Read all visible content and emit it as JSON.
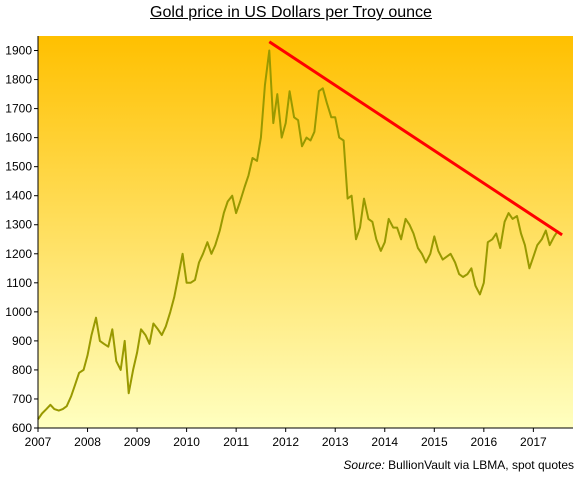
{
  "chart_data": {
    "type": "line",
    "title": "Gold price in US Dollars per Troy  ounce",
    "xlabel": "",
    "ylabel": "",
    "xlim": [
      2007.0,
      2017.8
    ],
    "ylim": [
      600,
      1950
    ],
    "x_ticks": [
      "2007",
      "2008",
      "2009",
      "2010",
      "2011",
      "2012",
      "2013",
      "2014",
      "2015",
      "2016",
      "2017"
    ],
    "y_ticks": [
      600,
      700,
      800,
      900,
      1000,
      1100,
      1200,
      1300,
      1400,
      1500,
      1600,
      1700,
      1800,
      1900
    ],
    "grid": false,
    "background_gradient": [
      "#ffc000",
      "#ffffc0"
    ],
    "series": [
      {
        "color": "#999900",
        "points": [
          [
            2007.0,
            630
          ],
          [
            2007.08,
            650
          ],
          [
            2007.17,
            665
          ],
          [
            2007.25,
            680
          ],
          [
            2007.33,
            665
          ],
          [
            2007.42,
            660
          ],
          [
            2007.5,
            665
          ],
          [
            2007.58,
            675
          ],
          [
            2007.67,
            710
          ],
          [
            2007.75,
            750
          ],
          [
            2007.83,
            790
          ],
          [
            2007.92,
            800
          ],
          [
            2008.0,
            850
          ],
          [
            2008.08,
            920
          ],
          [
            2008.17,
            980
          ],
          [
            2008.25,
            900
          ],
          [
            2008.33,
            890
          ],
          [
            2008.42,
            880
          ],
          [
            2008.5,
            940
          ],
          [
            2008.58,
            830
          ],
          [
            2008.67,
            800
          ],
          [
            2008.75,
            900
          ],
          [
            2008.83,
            720
          ],
          [
            2008.92,
            800
          ],
          [
            2009.0,
            860
          ],
          [
            2009.08,
            940
          ],
          [
            2009.17,
            920
          ],
          [
            2009.25,
            890
          ],
          [
            2009.33,
            960
          ],
          [
            2009.42,
            940
          ],
          [
            2009.5,
            920
          ],
          [
            2009.58,
            950
          ],
          [
            2009.67,
            1000
          ],
          [
            2009.75,
            1050
          ],
          [
            2009.83,
            1120
          ],
          [
            2009.92,
            1200
          ],
          [
            2010.0,
            1100
          ],
          [
            2010.08,
            1100
          ],
          [
            2010.17,
            1110
          ],
          [
            2010.25,
            1170
          ],
          [
            2010.33,
            1200
          ],
          [
            2010.42,
            1240
          ],
          [
            2010.5,
            1200
          ],
          [
            2010.58,
            1230
          ],
          [
            2010.67,
            1280
          ],
          [
            2010.75,
            1340
          ],
          [
            2010.83,
            1380
          ],
          [
            2010.92,
            1400
          ],
          [
            2011.0,
            1340
          ],
          [
            2011.08,
            1380
          ],
          [
            2011.17,
            1430
          ],
          [
            2011.25,
            1470
          ],
          [
            2011.33,
            1530
          ],
          [
            2011.42,
            1520
          ],
          [
            2011.5,
            1600
          ],
          [
            2011.58,
            1780
          ],
          [
            2011.67,
            1900
          ],
          [
            2011.75,
            1650
          ],
          [
            2011.83,
            1750
          ],
          [
            2011.92,
            1600
          ],
          [
            2012.0,
            1650
          ],
          [
            2012.08,
            1760
          ],
          [
            2012.17,
            1670
          ],
          [
            2012.25,
            1660
          ],
          [
            2012.33,
            1570
          ],
          [
            2012.42,
            1600
          ],
          [
            2012.5,
            1590
          ],
          [
            2012.58,
            1620
          ],
          [
            2012.67,
            1760
          ],
          [
            2012.75,
            1770
          ],
          [
            2012.83,
            1720
          ],
          [
            2012.92,
            1670
          ],
          [
            2013.0,
            1670
          ],
          [
            2013.08,
            1600
          ],
          [
            2013.17,
            1590
          ],
          [
            2013.25,
            1390
          ],
          [
            2013.33,
            1400
          ],
          [
            2013.42,
            1250
          ],
          [
            2013.5,
            1290
          ],
          [
            2013.58,
            1390
          ],
          [
            2013.67,
            1320
          ],
          [
            2013.75,
            1310
          ],
          [
            2013.83,
            1250
          ],
          [
            2013.92,
            1210
          ],
          [
            2014.0,
            1240
          ],
          [
            2014.08,
            1320
          ],
          [
            2014.17,
            1290
          ],
          [
            2014.25,
            1290
          ],
          [
            2014.33,
            1250
          ],
          [
            2014.42,
            1320
          ],
          [
            2014.5,
            1300
          ],
          [
            2014.58,
            1270
          ],
          [
            2014.67,
            1220
          ],
          [
            2014.75,
            1200
          ],
          [
            2014.83,
            1170
          ],
          [
            2014.92,
            1200
          ],
          [
            2015.0,
            1260
          ],
          [
            2015.08,
            1210
          ],
          [
            2015.17,
            1180
          ],
          [
            2015.25,
            1190
          ],
          [
            2015.33,
            1200
          ],
          [
            2015.42,
            1170
          ],
          [
            2015.5,
            1130
          ],
          [
            2015.58,
            1120
          ],
          [
            2015.67,
            1130
          ],
          [
            2015.75,
            1150
          ],
          [
            2015.83,
            1090
          ],
          [
            2015.92,
            1060
          ],
          [
            2016.0,
            1100
          ],
          [
            2016.08,
            1240
          ],
          [
            2016.17,
            1250
          ],
          [
            2016.25,
            1270
          ],
          [
            2016.33,
            1220
          ],
          [
            2016.42,
            1310
          ],
          [
            2016.5,
            1340
          ],
          [
            2016.58,
            1320
          ],
          [
            2016.67,
            1330
          ],
          [
            2016.75,
            1270
          ],
          [
            2016.83,
            1230
          ],
          [
            2016.92,
            1150
          ],
          [
            2017.0,
            1190
          ],
          [
            2017.08,
            1230
          ],
          [
            2017.17,
            1250
          ],
          [
            2017.25,
            1280
          ],
          [
            2017.33,
            1230
          ],
          [
            2017.42,
            1260
          ],
          [
            2017.5,
            1280
          ]
        ]
      },
      {
        "color": "#ff0000",
        "points": [
          [
            2011.67,
            1930
          ],
          [
            2017.58,
            1265
          ]
        ]
      }
    ],
    "x_tick_labels_position": "bottom",
    "y_tick_labels_position": "left"
  },
  "source": {
    "prefix": "Source:",
    "text": " BullionVault via LBMA, spot quotes"
  }
}
